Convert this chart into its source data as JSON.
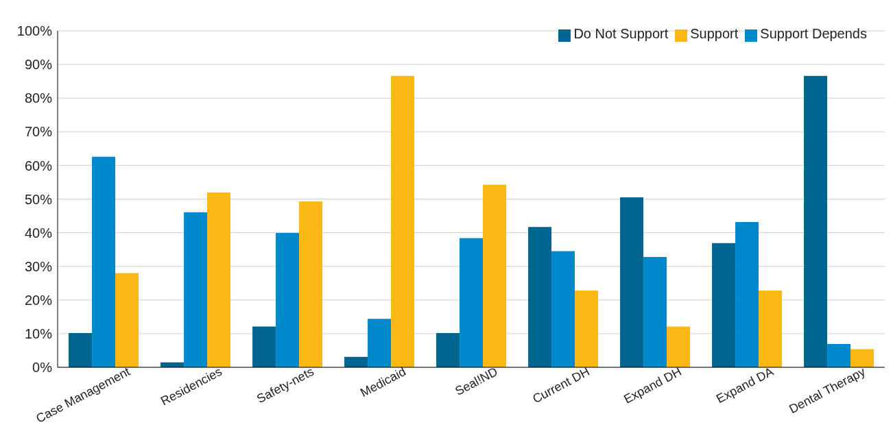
{
  "chart_data": {
    "type": "bar",
    "categories": [
      "Case Management",
      "Residencies",
      "Safety-nets",
      "Medicaid",
      "Seal!ND",
      "Current DH",
      "Expand DH",
      "Expand DA",
      "Dental Therapy"
    ],
    "series": [
      {
        "name": "Do Not Support",
        "color": "#006591",
        "values": [
          10.2,
          1.5,
          12.1,
          3.1,
          10.2,
          41.7,
          50.5,
          36.9,
          86.6
        ]
      },
      {
        "name": "Support Depends",
        "color": "#0088cc",
        "values": [
          62.6,
          46.1,
          39.9,
          14.4,
          38.4,
          34.5,
          32.8,
          43.2,
          6.9
        ]
      },
      {
        "name": "Support",
        "color": "#fbb714",
        "values": [
          28.0,
          52.0,
          49.3,
          86.6,
          54.3,
          22.8,
          12.1,
          22.8,
          5.4
        ]
      }
    ],
    "ylim": [
      0,
      100
    ],
    "yticks": [
      {
        "value": 0,
        "label": "0%"
      },
      {
        "value": 10,
        "label": "10%"
      },
      {
        "value": 20,
        "label": "20%"
      },
      {
        "value": 30,
        "label": "30%"
      },
      {
        "value": 40,
        "label": "40%"
      },
      {
        "value": 50,
        "label": "50%"
      },
      {
        "value": 60,
        "label": "60%"
      },
      {
        "value": 70,
        "label": "70%"
      },
      {
        "value": 80,
        "label": "80%"
      },
      {
        "value": 90,
        "label": "90%"
      },
      {
        "value": 100,
        "label": "100%"
      }
    ],
    "grid": "y",
    "legend": "top right"
  }
}
